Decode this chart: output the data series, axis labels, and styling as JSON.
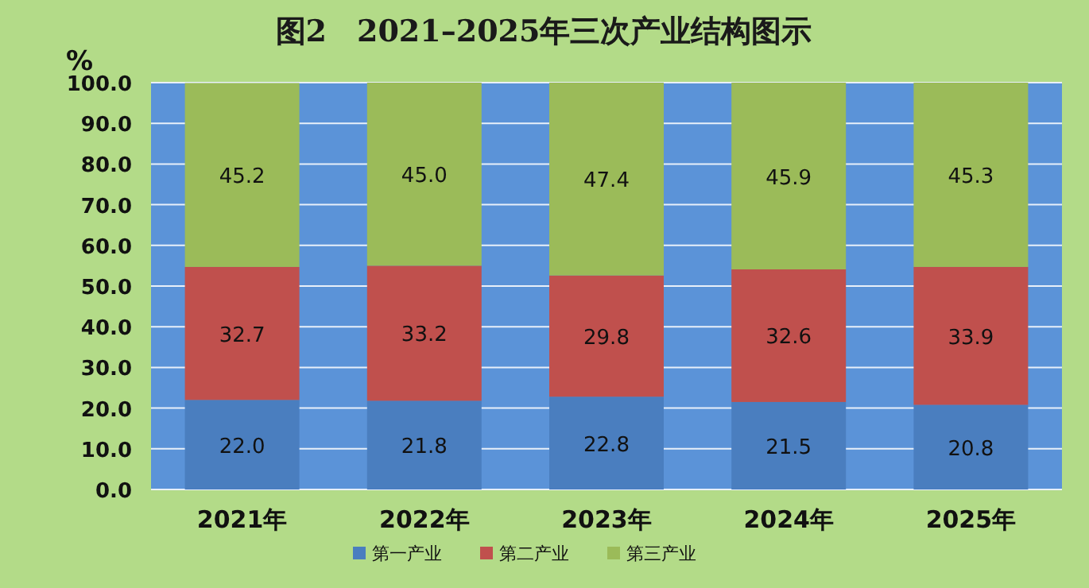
{
  "chart_data": {
    "type": "bar",
    "stacked": true,
    "title": "图2　2021–2025年三次产业结构图示",
    "ylabel": "%",
    "categories": [
      "2021年",
      "2022年",
      "2023年",
      "2024年",
      "2025年"
    ],
    "series": [
      {
        "name": "第一产业",
        "color": "#4a7ebf",
        "values": [
          22.0,
          21.8,
          22.8,
          21.5,
          20.8
        ],
        "value_labels": [
          "22.0",
          "21.8",
          "22.8",
          "21.5",
          "20.8"
        ]
      },
      {
        "name": "第二产业",
        "color": "#c0504d",
        "values": [
          32.7,
          33.2,
          29.8,
          32.6,
          33.9
        ],
        "value_labels": [
          "32.7",
          "33.2",
          "29.8",
          "32.6",
          "33.9"
        ]
      },
      {
        "name": "第三产业",
        "color": "#9bbb59",
        "values": [
          45.2,
          45.0,
          47.4,
          45.9,
          45.3
        ],
        "value_labels": [
          "45.2",
          "45.0",
          "47.4",
          "45.9",
          "45.3"
        ]
      }
    ],
    "ylim": [
      0,
      100
    ],
    "yticks": [
      {
        "value": 0,
        "label": "0.0"
      },
      {
        "value": 10,
        "label": "10.0"
      },
      {
        "value": 20,
        "label": "20.0"
      },
      {
        "value": 30,
        "label": "30.0"
      },
      {
        "value": 40,
        "label": "40.0"
      },
      {
        "value": 50,
        "label": "50.0"
      },
      {
        "value": 60,
        "label": "60.0"
      },
      {
        "value": 70,
        "label": "70.0"
      },
      {
        "value": 80,
        "label": "80.0"
      },
      {
        "value": 90,
        "label": "90.0"
      },
      {
        "value": 100,
        "label": "100.0"
      }
    ],
    "grid": "y",
    "legend": "bottom"
  }
}
